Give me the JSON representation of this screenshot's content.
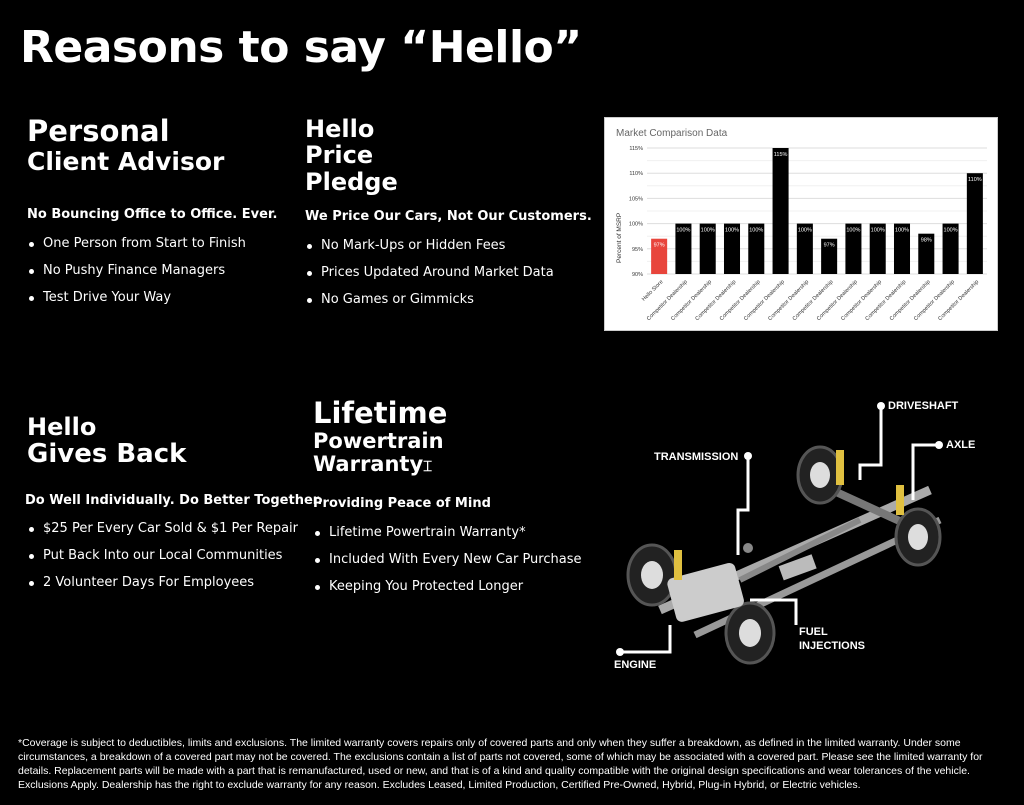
{
  "title": "Reasons to say “Hello”",
  "sections": [
    {
      "title1": "Personal",
      "title2": "Client Advisor",
      "subtitle": "No Bouncing Office to Office. Ever.",
      "items": [
        "One Person from Start to Finish",
        "No Pushy Finance Managers",
        "Test Drive Your Way"
      ]
    },
    {
      "title1": "Hello",
      "title2": "Price",
      "title3": "Pledge",
      "subtitle": "We Price Our Cars, Not Our Customers.",
      "items": [
        "No Mark-Ups or Hidden Fees",
        "Prices Updated Around Market Data",
        "No Games or Gimmicks"
      ]
    },
    {
      "title1": "Hello",
      "title2": "Gives Back",
      "subtitle": "Do Well Individually. Do Better Together.",
      "items": [
        "$25 Per Every Car Sold & $1 Per Repair",
        "Put Back Into our Local Communities",
        "2 Volunteer Days For Employees"
      ]
    },
    {
      "title1": "Lifetime",
      "title2": "Powertrain",
      "title3": "Warranty",
      "subtitle": "Providing Peace of Mind",
      "items": [
        "Lifetime Powertrain Warranty*",
        "Included With Every New Car Purchase",
        "Keeping You Protected Longer"
      ]
    }
  ],
  "diagram_labels": {
    "driveshaft": "DRIVESHAFT",
    "axle": "AXLE",
    "transmission": "TRANSMISSION",
    "fuel1": "FUEL",
    "fuel2": "INJECTIONS",
    "engine": "ENGINE"
  },
  "footnote": "*Coverage is subject to deductibles, limits and exclusions. The limited warranty covers repairs only of covered parts and only when they suffer a breakdown, as defined in the limited warranty. Under some circumstances, a breakdown of a covered part may not be covered. The exclusions contain a list of parts not covered, some of which may be associated with a covered part. Please see the limited warranty for details. Replacement parts will be made with a part that is remanufactured, used or new, and that is of a kind and quality compatible with the original design specifications and wear tolerances of the vehicle. Exclusions Apply. Dealership has the right to exclude warranty for any reason. Excludes Leased, Limited Production, Certified Pre-Owned, Hybrid, Plug-in Hybrid, or Electric vehicles.",
  "chart_data": {
    "type": "bar",
    "title": "Market Comparison Data",
    "xlabel": "",
    "ylabel": "Percent of MSRP",
    "ylim": [
      90,
      115
    ],
    "yticks": [
      "90%",
      "95%",
      "100%",
      "105%",
      "110%",
      "115%"
    ],
    "categories": [
      "Hello Store",
      "Competitor Dealership",
      "Competitor Dealership",
      "Competitor Dealership",
      "Competitor Dealership",
      "Competitor Dealership",
      "Competitor Dealership",
      "Competitor Dealership",
      "Competitor Dealership",
      "Competitor Dealership",
      "Competitor Dealership",
      "Competitor Dealership",
      "Competitor Dealership",
      "Competitor Dealership"
    ],
    "values": [
      97,
      100,
      100,
      100,
      100,
      115,
      100,
      97,
      100,
      100,
      100,
      98,
      100,
      110
    ],
    "colors": [
      "#e8453c",
      "#000000"
    ],
    "grid": true
  }
}
